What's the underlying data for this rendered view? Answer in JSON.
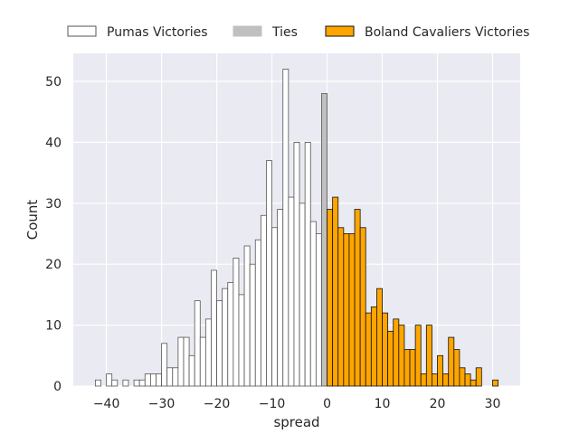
{
  "chart_data": {
    "type": "bar",
    "xlabel": "spread",
    "ylabel": "Count",
    "xlim": [
      -46,
      35
    ],
    "ylim": [
      0,
      54.6
    ],
    "bin_width": 1,
    "grid": true,
    "legend_placement": "top",
    "x_ticks": [
      "-40",
      "-30",
      "-20",
      "-10",
      "0",
      "10",
      "20",
      "30"
    ],
    "y_ticks": [
      "0",
      "10",
      "20",
      "30",
      "40",
      "50"
    ],
    "series": [
      {
        "name": "Pumas Victories",
        "color": "#ffffff",
        "edge": "#555555",
        "bins": [
          {
            "x": -42,
            "y": 1
          },
          {
            "x": -40,
            "y": 2
          },
          {
            "x": -39,
            "y": 1
          },
          {
            "x": -37,
            "y": 1
          },
          {
            "x": -35,
            "y": 1
          },
          {
            "x": -34,
            "y": 1
          },
          {
            "x": -33,
            "y": 2
          },
          {
            "x": -32,
            "y": 2
          },
          {
            "x": -31,
            "y": 2
          },
          {
            "x": -30,
            "y": 7
          },
          {
            "x": -29,
            "y": 3
          },
          {
            "x": -28,
            "y": 3
          },
          {
            "x": -27,
            "y": 8
          },
          {
            "x": -26,
            "y": 8
          },
          {
            "x": -25,
            "y": 5
          },
          {
            "x": -24,
            "y": 14
          },
          {
            "x": -23,
            "y": 8
          },
          {
            "x": -22,
            "y": 11
          },
          {
            "x": -21,
            "y": 19
          },
          {
            "x": -20,
            "y": 14
          },
          {
            "x": -19,
            "y": 16
          },
          {
            "x": -18,
            "y": 17
          },
          {
            "x": -17,
            "y": 21
          },
          {
            "x": -16,
            "y": 15
          },
          {
            "x": -15,
            "y": 23
          },
          {
            "x": -14,
            "y": 20
          },
          {
            "x": -13,
            "y": 24
          },
          {
            "x": -12,
            "y": 28
          },
          {
            "x": -11,
            "y": 37
          },
          {
            "x": -10,
            "y": 26
          },
          {
            "x": -9,
            "y": 29
          },
          {
            "x": -8,
            "y": 52
          },
          {
            "x": -7,
            "y": 31
          },
          {
            "x": -6,
            "y": 40
          },
          {
            "x": -5,
            "y": 30
          },
          {
            "x": -4,
            "y": 40
          },
          {
            "x": -3,
            "y": 27
          },
          {
            "x": -2,
            "y": 25
          }
        ]
      },
      {
        "name": "Ties",
        "color": "#c0c0c0",
        "edge": "#555555",
        "bins": [
          {
            "x": -1,
            "y": 48
          }
        ]
      },
      {
        "name": "Boland Cavaliers Victories",
        "color": "#ffa500",
        "edge": "#111111",
        "bins": [
          {
            "x": 0,
            "y": 29
          },
          {
            "x": 1,
            "y": 31
          },
          {
            "x": 2,
            "y": 26
          },
          {
            "x": 3,
            "y": 25
          },
          {
            "x": 4,
            "y": 25
          },
          {
            "x": 5,
            "y": 29
          },
          {
            "x": 6,
            "y": 26
          },
          {
            "x": 7,
            "y": 12
          },
          {
            "x": 8,
            "y": 13
          },
          {
            "x": 9,
            "y": 16
          },
          {
            "x": 10,
            "y": 12
          },
          {
            "x": 11,
            "y": 9
          },
          {
            "x": 12,
            "y": 11
          },
          {
            "x": 13,
            "y": 10
          },
          {
            "x": 14,
            "y": 6
          },
          {
            "x": 15,
            "y": 6
          },
          {
            "x": 16,
            "y": 10
          },
          {
            "x": 17,
            "y": 2
          },
          {
            "x": 18,
            "y": 10
          },
          {
            "x": 19,
            "y": 2
          },
          {
            "x": 20,
            "y": 5
          },
          {
            "x": 21,
            "y": 2
          },
          {
            "x": 22,
            "y": 8
          },
          {
            "x": 23,
            "y": 6
          },
          {
            "x": 24,
            "y": 3
          },
          {
            "x": 25,
            "y": 2
          },
          {
            "x": 26,
            "y": 1
          },
          {
            "x": 27,
            "y": 3
          },
          {
            "x": 30,
            "y": 1
          }
        ]
      }
    ]
  }
}
